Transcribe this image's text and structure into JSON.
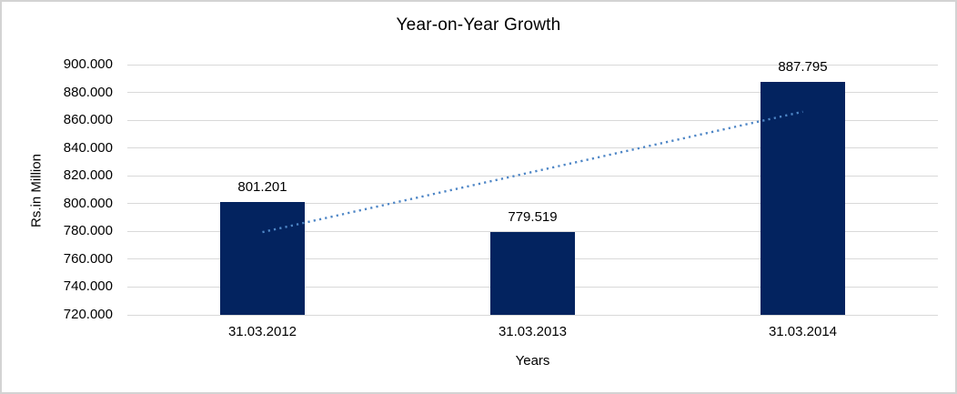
{
  "chart_data": {
    "type": "bar",
    "title": "Year-on-Year Growth",
    "xlabel": "Years",
    "ylabel": "Rs.in Million",
    "categories": [
      "31.03.2012",
      "31.03.2013",
      "31.03.2014"
    ],
    "values": [
      801.201,
      779.519,
      887.795
    ],
    "value_labels": [
      "801.201",
      "779.519",
      "887.795"
    ],
    "ylim": [
      720,
      900
    ],
    "y_tick_step": 20,
    "y_tick_labels_top_to_bottom": [
      "900.000",
      "880.000",
      "860.000",
      "840.000",
      "820.000",
      "800.000",
      "780.000",
      "760.000",
      "740.000",
      "720.000"
    ],
    "grid": true,
    "legend": false,
    "bar_color": "#03235f",
    "gridline_color": "#d9d9d9",
    "frame_color": "#d3d3d3",
    "text_color": "#000000",
    "trendline": {
      "type": "linear",
      "style": "dotted",
      "color": "#4e86c6",
      "y_start": 779.5,
      "y_end": 866.1
    }
  }
}
